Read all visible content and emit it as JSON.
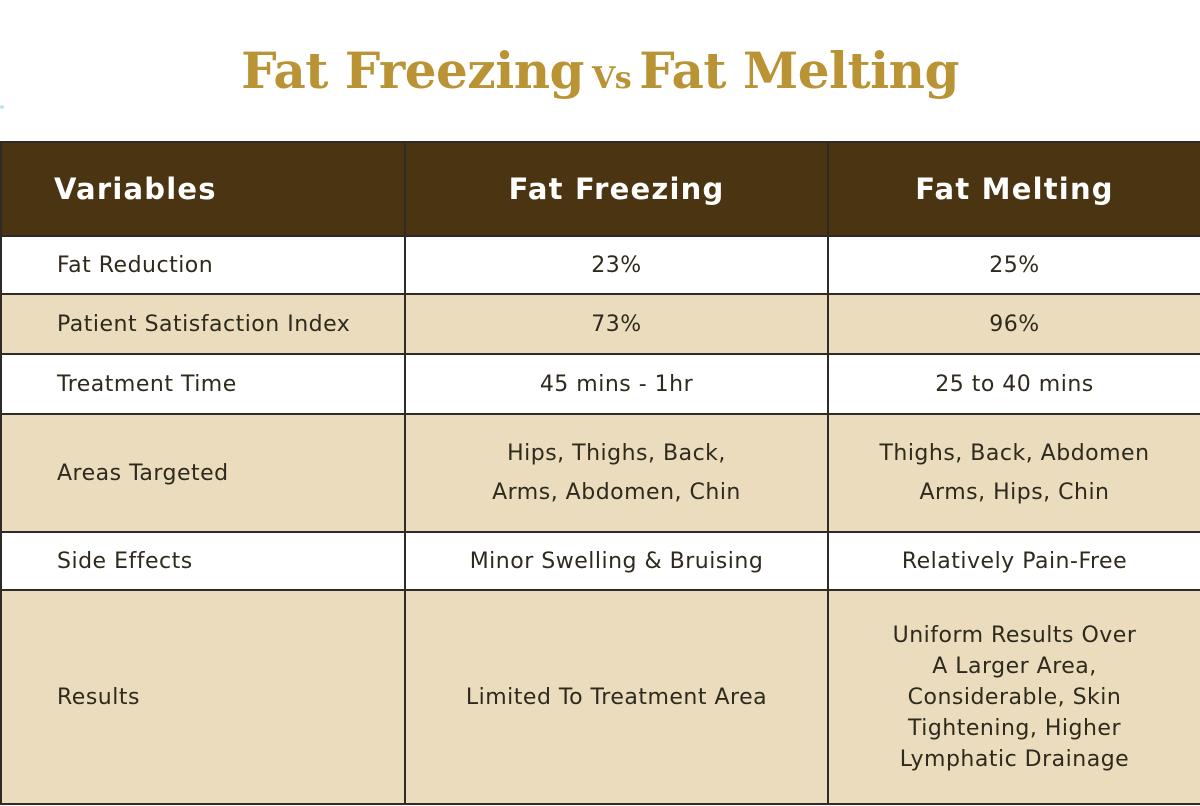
{
  "colors": {
    "title_gold": "#b99334",
    "header_bg": "#4b3411",
    "row_white": "#ffffff",
    "row_beige": "#eadcbc",
    "text_dark": "#2f2a1e"
  },
  "title": {
    "left": "Fat Freezing",
    "vs": "Vs",
    "right": "Fat Melting"
  },
  "table": {
    "headers": [
      "Variables",
      "Fat Freezing",
      "Fat Melting"
    ],
    "rows": [
      {
        "label": "Fat Reduction",
        "freezing": [
          "23%"
        ],
        "melting": [
          "25%"
        ]
      },
      {
        "label": "Patient Satisfaction Index",
        "freezing": [
          "73%"
        ],
        "melting": [
          "96%"
        ]
      },
      {
        "label": "Treatment Time",
        "freezing": [
          "45 mins - 1hr"
        ],
        "melting": [
          "25 to 40 mins"
        ]
      },
      {
        "label": "Areas Targeted",
        "freezing": [
          "Hips, Thighs, Back,",
          "Arms, Abdomen, Chin"
        ],
        "melting": [
          "Thighs, Back, Abdomen",
          "Arms, Hips, Chin"
        ]
      },
      {
        "label": "Side Effects",
        "freezing": [
          "Minor Swelling & Bruising"
        ],
        "melting": [
          "Relatively Pain-Free"
        ]
      },
      {
        "label": "Results",
        "freezing": [
          "Limited To Treatment Area"
        ],
        "melting": [
          "Uniform Results Over",
          "A Larger Area,",
          "Considerable, Skin",
          "Tightening, Higher",
          "Lymphatic Drainage"
        ]
      }
    ]
  }
}
